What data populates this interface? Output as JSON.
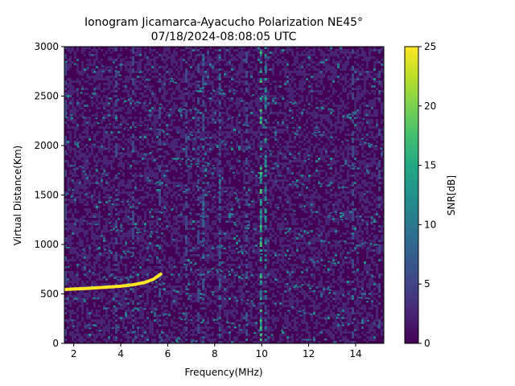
{
  "chart_data": {
    "type": "heatmap",
    "title": "Ionogram Jicamarca-Ayacucho Polarization NE45°",
    "subtitle": "07/18/2024-08:08:05 UTC",
    "xlabel": "Frequency(MHz)",
    "ylabel": "Virtual Distance(Km)",
    "colorbar_label": "SNR[dB]",
    "colormap": "viridis",
    "xlim": [
      1.6,
      15.2
    ],
    "ylim": [
      0,
      3000
    ],
    "clim": [
      0,
      25
    ],
    "x_ticks": [
      2,
      4,
      6,
      8,
      10,
      12,
      14
    ],
    "y_ticks": [
      0,
      500,
      1000,
      1500,
      2000,
      2500,
      3000
    ],
    "colorbar_ticks": [
      0,
      5,
      10,
      15,
      20,
      25
    ],
    "traces": [
      {
        "snr_db": 25,
        "points": [
          [
            1.6,
            545
          ],
          [
            2.0,
            550
          ],
          [
            2.5,
            555
          ],
          [
            3.0,
            562
          ],
          [
            3.5,
            570
          ],
          [
            4.0,
            578
          ],
          [
            4.5,
            592
          ],
          [
            5.0,
            615
          ],
          [
            5.4,
            650
          ],
          [
            5.7,
            700
          ]
        ]
      }
    ]
  }
}
